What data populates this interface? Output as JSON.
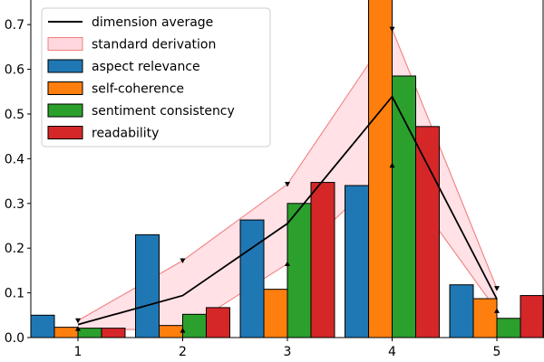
{
  "chart_data": {
    "type": "bar",
    "title": "",
    "xlabel": "",
    "ylabel": "",
    "categories": [
      "1",
      "2",
      "3",
      "4",
      "5"
    ],
    "x": [
      1,
      2,
      3,
      4,
      5
    ],
    "xlim": [
      0.55,
      5.45
    ],
    "ylim": [
      0,
      0.755
    ],
    "yticks": [
      0.0,
      0.1,
      0.2,
      0.3,
      0.4,
      0.5,
      0.6,
      0.7
    ],
    "ytick_labels": [
      "0.0",
      "0.1",
      "0.2",
      "0.3",
      "0.4",
      "0.5",
      "0.6",
      "0.7"
    ],
    "grid": false,
    "legend": {
      "placement": "top-left",
      "entries": [
        {
          "label": "dimension average",
          "kind": "line",
          "color": "#000000"
        },
        {
          "label": "standard derivation",
          "kind": "band",
          "color": "#ffd7de",
          "edge": "#f08080"
        },
        {
          "label": "aspect relevance",
          "kind": "bar",
          "color": "#1f77b4"
        },
        {
          "label": "self-coherence",
          "kind": "bar",
          "color": "#ff7f0e"
        },
        {
          "label": "sentiment consistency",
          "kind": "bar",
          "color": "#2ca02c"
        },
        {
          "label": "readability",
          "kind": "bar",
          "color": "#d62728"
        }
      ]
    },
    "series": [
      {
        "name": "aspect relevance",
        "color": "#1f77b4",
        "values": [
          0.05,
          0.23,
          0.263,
          0.34,
          0.118
        ]
      },
      {
        "name": "self-coherence",
        "color": "#ff7f0e",
        "values": [
          0.023,
          0.027,
          0.108,
          0.76,
          0.087
        ]
      },
      {
        "name": "sentiment consistency",
        "color": "#2ca02c",
        "values": [
          0.021,
          0.052,
          0.3,
          0.585,
          0.043
        ]
      },
      {
        "name": "readability",
        "color": "#d62728",
        "values": [
          0.021,
          0.067,
          0.347,
          0.472,
          0.094
        ]
      }
    ],
    "average": {
      "name": "dimension average",
      "color": "#000000",
      "values": [
        0.029,
        0.094,
        0.255,
        0.539,
        0.086
      ]
    },
    "band": {
      "name": "standard derivation",
      "color": "#ffd7de",
      "edge": "#f08080",
      "upper": [
        0.038,
        0.172,
        0.343,
        0.69,
        0.11
      ],
      "lower": [
        0.02,
        0.016,
        0.165,
        0.385,
        0.06
      ]
    }
  }
}
